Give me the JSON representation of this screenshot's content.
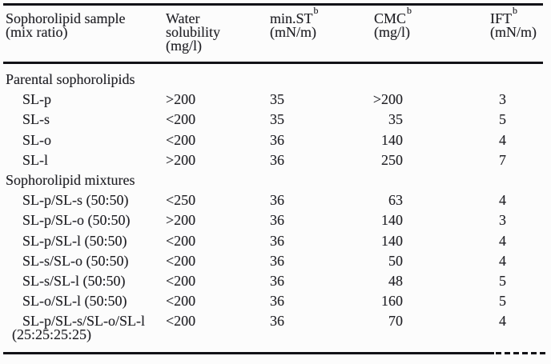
{
  "table": {
    "header": {
      "columns": [
        {
          "line1": "Sophorolipid sample",
          "line2": "(mix ratio)"
        },
        {
          "line1": "Water",
          "line2": "solubility",
          "line3": "(mg/l)"
        },
        {
          "line1": "min.ST",
          "sup": "b",
          "line2": "(mN/m)"
        },
        {
          "line1": "CMC",
          "sup": "b",
          "line2": "(mg/l)"
        },
        {
          "line1": "IFT",
          "sup": "b",
          "line2": "(mN/m)"
        }
      ]
    },
    "sections": [
      {
        "title": "Parental sophorolipids",
        "rows": [
          {
            "sample": "SL-p",
            "water": ">200",
            "min_st": "35",
            "cmc": ">200",
            "ift": "3"
          },
          {
            "sample": "SL-s",
            "water": "<200",
            "min_st": "35",
            "cmc": "35",
            "ift": "5"
          },
          {
            "sample": "SL-o",
            "water": "<200",
            "min_st": "36",
            "cmc": "140",
            "ift": "4"
          },
          {
            "sample": "SL-l",
            "water": ">200",
            "min_st": "36",
            "cmc": "250",
            "ift": "7"
          }
        ]
      },
      {
        "title": "Sophorolipid mixtures",
        "rows": [
          {
            "sample": "SL-p/SL-s (50:50)",
            "water": "<250",
            "min_st": "36",
            "cmc": "63",
            "ift": "4"
          },
          {
            "sample": "SL-p/SL-o (50:50)",
            "water": ">200",
            "min_st": "36",
            "cmc": "140",
            "ift": "3"
          },
          {
            "sample": "SL-p/SL-l (50:50)",
            "water": "<200",
            "min_st": "36",
            "cmc": "140",
            "ift": "4"
          },
          {
            "sample": "SL-s/SL-o (50:50)",
            "water": "<200",
            "min_st": "36",
            "cmc": "50",
            "ift": "4"
          },
          {
            "sample": "SL-s/SL-l (50:50)",
            "water": "<200",
            "min_st": "36",
            "cmc": "48",
            "ift": "5"
          },
          {
            "sample": "SL-o/SL-l (50:50)",
            "water": "<200",
            "min_st": "36",
            "cmc": "160",
            "ift": "5"
          },
          {
            "sample": "SL-p/SL-s/SL-o/SL-l",
            "ratio": "(25:25:25:25)",
            "water": "<200",
            "min_st": "36",
            "cmc": "70",
            "ift": "4"
          }
        ]
      }
    ],
    "colors": {
      "text": "#212126",
      "rule": "#121217",
      "background": "#fcfcfc"
    }
  }
}
